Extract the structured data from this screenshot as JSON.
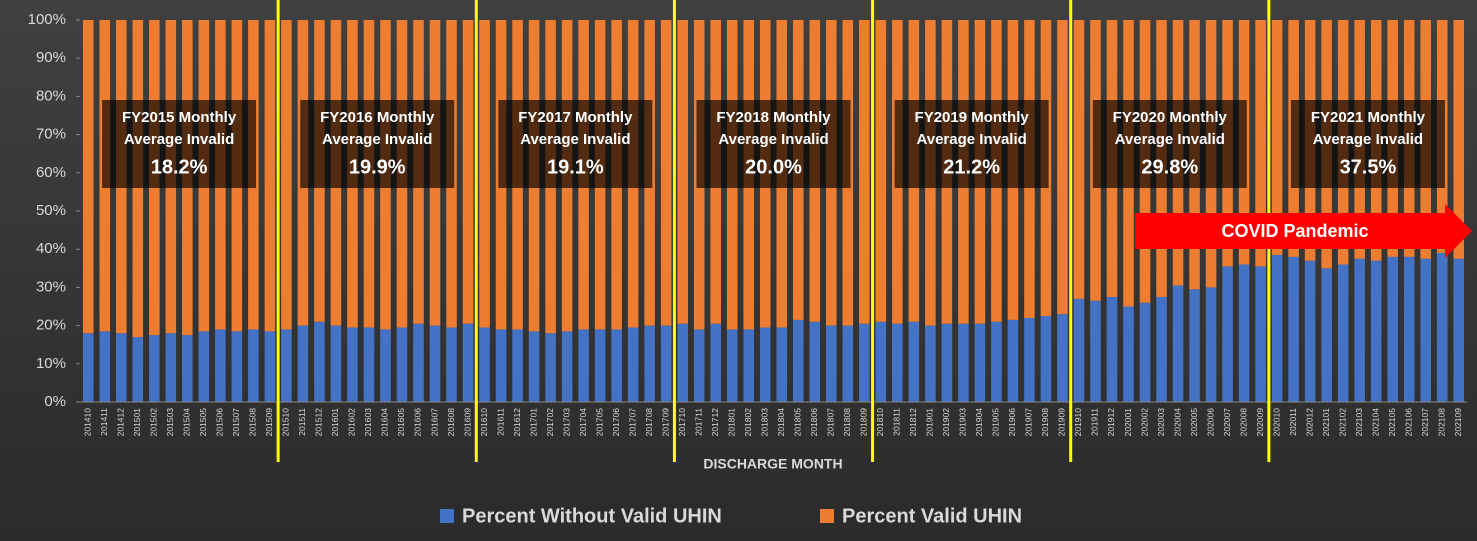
{
  "chart_data": {
    "type": "stacked_bar",
    "x_label": "DISCHARGE MONTH",
    "categories": [
      "201410",
      "201411",
      "201412",
      "201501",
      "201502",
      "201503",
      "201504",
      "201505",
      "201506",
      "201507",
      "201508",
      "201509",
      "201510",
      "201511",
      "201512",
      "201601",
      "201602",
      "201603",
      "201604",
      "201605",
      "201606",
      "201607",
      "201608",
      "201609",
      "201610",
      "201611",
      "201612",
      "201701",
      "201702",
      "201703",
      "201704",
      "201705",
      "201706",
      "201707",
      "201708",
      "201709",
      "201710",
      "201711",
      "201712",
      "201801",
      "201802",
      "201803",
      "201804",
      "201805",
      "201806",
      "201807",
      "201808",
      "201809",
      "201810",
      "201811",
      "201812",
      "201901",
      "201902",
      "201903",
      "201904",
      "201905",
      "201906",
      "201907",
      "201908",
      "201909",
      "201910",
      "201911",
      "201912",
      "202001",
      "202002",
      "202003",
      "202004",
      "202005",
      "202006",
      "202007",
      "202008",
      "202009",
      "202010",
      "202011",
      "202012",
      "202101",
      "202102",
      "202103",
      "202104",
      "202105",
      "202106",
      "202107",
      "202108",
      "202109"
    ],
    "series": [
      {
        "name": "Percent Without Valid UHIN",
        "color": "#4472c4",
        "values": [
          18,
          18.5,
          18,
          17,
          17.5,
          18,
          17.5,
          18.5,
          19,
          18.5,
          19,
          18.5,
          19,
          20,
          21,
          20,
          19.5,
          19.5,
          19,
          19.5,
          20.5,
          20,
          19.5,
          20.5,
          19.5,
          19,
          19,
          18.5,
          18,
          18.5,
          19,
          19,
          19,
          19.5,
          20,
          20,
          20.5,
          19,
          20.5,
          19,
          19,
          19.5,
          19.5,
          21.5,
          21,
          20,
          20,
          20.5,
          21,
          20.5,
          21,
          20,
          20.5,
          20.5,
          20.5,
          21,
          21.5,
          22,
          22.5,
          23,
          27,
          26.5,
          27.5,
          25,
          26,
          27.5,
          30.5,
          29.5,
          30,
          35.5,
          36,
          35.5,
          38.5,
          38,
          37,
          35,
          36,
          37.5,
          37,
          38,
          38,
          37.5,
          39,
          37.5
        ]
      },
      {
        "name": "Percent Valid UHIN",
        "color": "#ed7d31",
        "values": [
          82,
          81.5,
          82,
          83,
          82.5,
          82,
          82.5,
          81.5,
          81,
          81.5,
          81,
          81.5,
          81,
          80,
          79,
          80,
          80.5,
          80.5,
          81,
          80.5,
          79.5,
          80,
          80.5,
          79.5,
          80.5,
          81,
          81,
          81.5,
          82,
          81.5,
          81,
          81,
          81,
          80.5,
          80,
          80,
          79.5,
          81,
          79.5,
          81,
          81,
          80.5,
          80.5,
          78.5,
          79,
          80,
          80,
          79.5,
          79,
          79.5,
          79,
          80,
          79.5,
          79.5,
          79.5,
          79,
          78.5,
          78,
          77.5,
          77,
          73,
          73.5,
          72.5,
          75,
          74,
          72.5,
          69.5,
          70.5,
          70,
          64.5,
          64,
          64.5,
          61.5,
          62,
          63,
          65,
          64,
          62.5,
          63,
          62,
          62,
          62.5,
          61,
          62.5
        ]
      }
    ],
    "ylim": [
      0,
      100
    ],
    "yticks": [
      {
        "value": 0,
        "label": "0%"
      },
      {
        "value": 10,
        "label": "10%"
      },
      {
        "value": 20,
        "label": "20%"
      },
      {
        "value": 30,
        "label": "30%"
      },
      {
        "value": 40,
        "label": "40%"
      },
      {
        "value": 50,
        "label": "50%"
      },
      {
        "value": 60,
        "label": "60%"
      },
      {
        "value": 70,
        "label": "70%"
      },
      {
        "value": 80,
        "label": "80%"
      },
      {
        "value": 90,
        "label": "90%"
      },
      {
        "value": 100,
        "label": "100%"
      }
    ],
    "annotations": [
      {
        "lines": [
          "FY2015 Monthly",
          "Average Invalid"
        ],
        "value": "18.2%"
      },
      {
        "lines": [
          "FY2016 Monthly",
          "Average Invalid"
        ],
        "value": "19.9%"
      },
      {
        "lines": [
          "FY2017 Monthly",
          "Average Invalid"
        ],
        "value": "19.1%"
      },
      {
        "lines": [
          "FY2018 Monthly",
          "Average Invalid"
        ],
        "value": "20.0%"
      },
      {
        "lines": [
          "FY2019 Monthly",
          "Average Invalid"
        ],
        "value": "21.2%"
      },
      {
        "lines": [
          "FY2020 Monthly",
          "Average Invalid"
        ],
        "value": "29.8%"
      },
      {
        "lines": [
          "FY2021 Monthly",
          "Average Invalid"
        ],
        "value": "37.5%"
      }
    ],
    "arrow_label": "COVID Pandemic"
  }
}
